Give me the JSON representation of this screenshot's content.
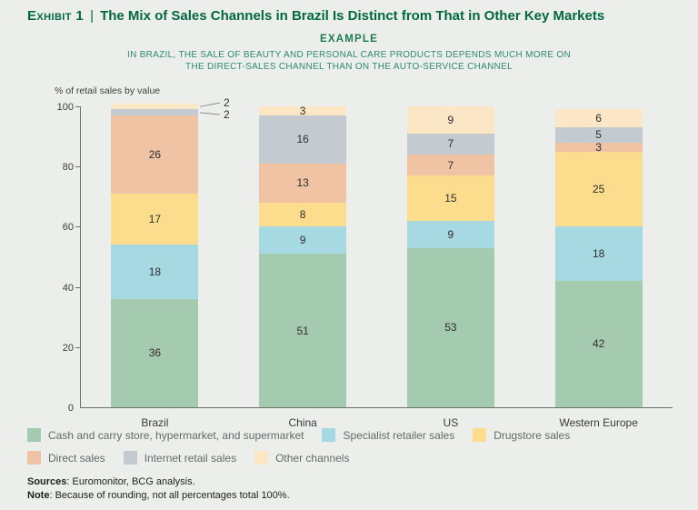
{
  "header": {
    "exhibit_label": "Exhibit 1",
    "separator": "|",
    "title": "The Mix of Sales Channels in Brazil Is Distinct from That in Other Key Markets"
  },
  "example_tag": "EXAMPLE",
  "subtitle_line1": "IN BRAZIL, THE SALE OF BEAUTY AND PERSONAL CARE PRODUCTS DEPENDS MUCH MORE ON",
  "subtitle_line2": "THE DIRECT-SALES CHANNEL THAN ON THE AUTO-SERVICE CHANNEL",
  "chart_data": {
    "type": "stacked-bar",
    "title": "The Mix of Sales Channels in Brazil Is Distinct from That in Other Key Markets",
    "ylabel": "% of retail sales by value",
    "ylim": [
      0,
      100
    ],
    "yticks": [
      0,
      20,
      40,
      60,
      80,
      100
    ],
    "grid": false,
    "legend_position": "bottom",
    "categories": [
      "Brazil",
      "China",
      "US",
      "Western Europe"
    ],
    "series": [
      {
        "name": "Cash and carry store, hypermarket, and supermarket",
        "color": "#a4cab0",
        "values": [
          36,
          51,
          53,
          42
        ]
      },
      {
        "name": "Specialist retailer sales",
        "color": "#a6d9e1",
        "values": [
          18,
          9,
          9,
          18
        ]
      },
      {
        "name": "Drugstore sales",
        "color": "#fcdd8d",
        "values": [
          17,
          8,
          15,
          25
        ]
      },
      {
        "name": "Direct sales",
        "color": "#efc3a3",
        "values": [
          26,
          13,
          7,
          3
        ]
      },
      {
        "name": "Internet retail sales",
        "color": "#c3cbd1",
        "values": [
          2,
          16,
          7,
          5
        ]
      },
      {
        "name": "Other channels",
        "color": "#fbe6c6",
        "values": [
          2,
          3,
          9,
          6
        ]
      }
    ],
    "callout_threshold": 3
  },
  "footer": {
    "sources_label": "Sources",
    "sources_text": ": Euromonitor, BCG analysis.",
    "note_label": "Note",
    "note_text": ": Because of rounding, not all percentages total 100%."
  }
}
